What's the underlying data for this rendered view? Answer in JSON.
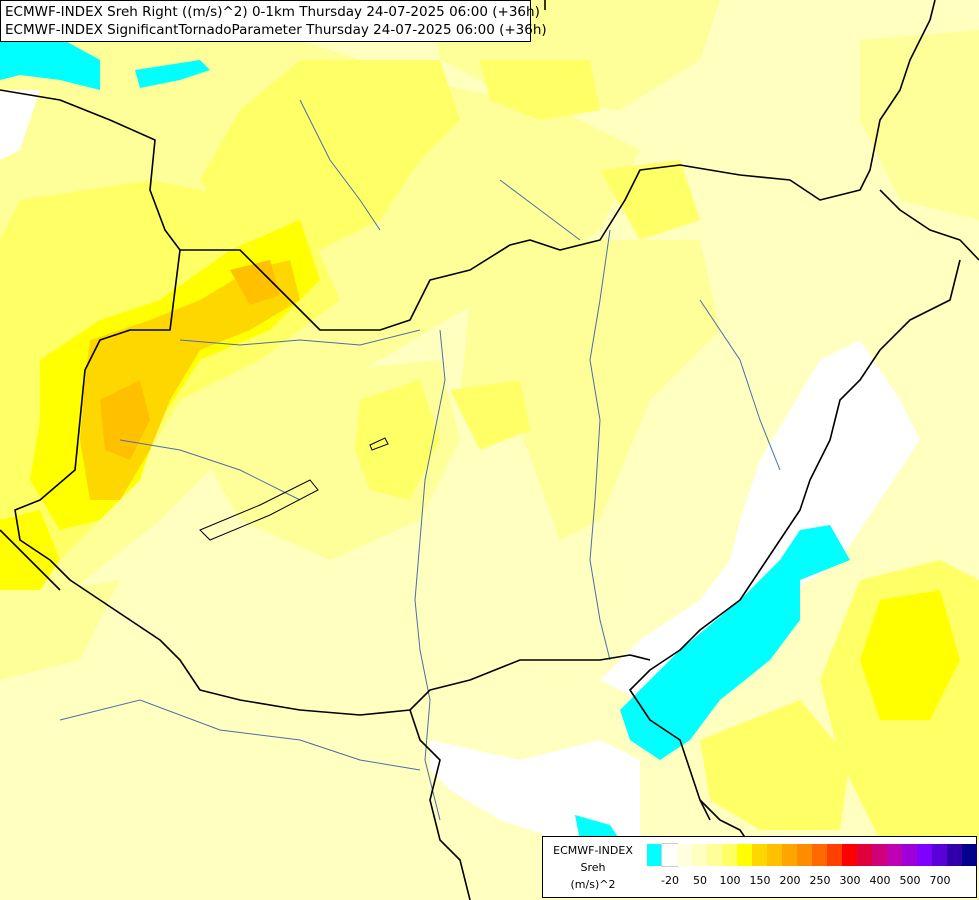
{
  "header": {
    "line1": "ECMWF-INDEX Sreh Right ((m/s)^2) 0-1km Thursday 24-07-2025 06:00 (+36h)",
    "line2": "ECMWF-INDEX SignificantTornadoParameter Thursday 24-07-2025 06:00 (+36h)"
  },
  "legend": {
    "line1": "ECMWF-INDEX",
    "line2": "Sreh",
    "line3": "(m/s)^2",
    "colors": [
      "#00ffff",
      "#ffffff",
      "#ffffe0",
      "#ffffc0",
      "#ffff99",
      "#ffff66",
      "#ffff00",
      "#ffd700",
      "#ffc000",
      "#ffa500",
      "#ff8c00",
      "#ff6a00",
      "#ff4000",
      "#ff0000",
      "#e0003c",
      "#d0007a",
      "#c000b4",
      "#a000d8",
      "#8000ff",
      "#5a00d8",
      "#3200a8",
      "#00008c"
    ],
    "ticks": [
      "-20",
      "50",
      "100",
      "150",
      "200",
      "250",
      "300",
      "400",
      "500",
      "700"
    ]
  },
  "map_colors": {
    "background": "#ffffc0",
    "light_yellow": "#ffff99",
    "mid_yellow": "#ffff66",
    "yellow": "#ffff00",
    "gold": "#ffd700",
    "orange": "#ffc000",
    "white": "#ffffff",
    "cyan": "#00ffff",
    "border": "#000000",
    "river": "#4a6ea8"
  }
}
